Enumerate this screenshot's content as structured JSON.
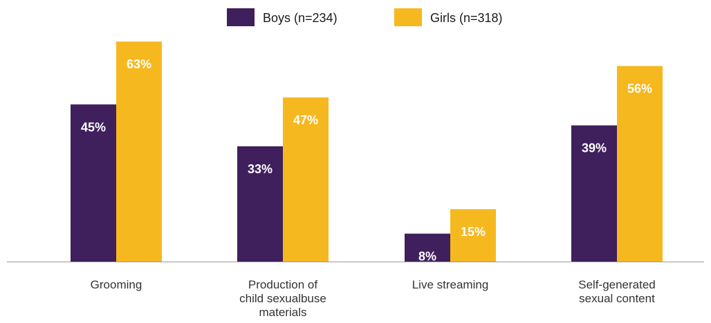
{
  "chart_data": {
    "type": "bar",
    "title": "",
    "xlabel": "",
    "ylabel": "",
    "ylim": [
      0,
      70
    ],
    "grid": false,
    "legend_position": "top-center",
    "categories": [
      [
        "Grooming"
      ],
      [
        "Production of",
        "child sexualbuse",
        "materials"
      ],
      [
        "Live streaming"
      ],
      [
        "Self-generated",
        "sexual content"
      ]
    ],
    "series": [
      {
        "name": "Boys (n=234)",
        "color": "#3f1f5c",
        "values": [
          45,
          33,
          8,
          39
        ],
        "labels": [
          "45%",
          "33%",
          "8%",
          "39%"
        ]
      },
      {
        "name": "Girls (n=318)",
        "color": "#f6b81f",
        "values": [
          63,
          47,
          15,
          56
        ],
        "labels": [
          "63%",
          "47%",
          "15%",
          "56%"
        ]
      }
    ],
    "baseline_color": "#9a9a9a"
  }
}
